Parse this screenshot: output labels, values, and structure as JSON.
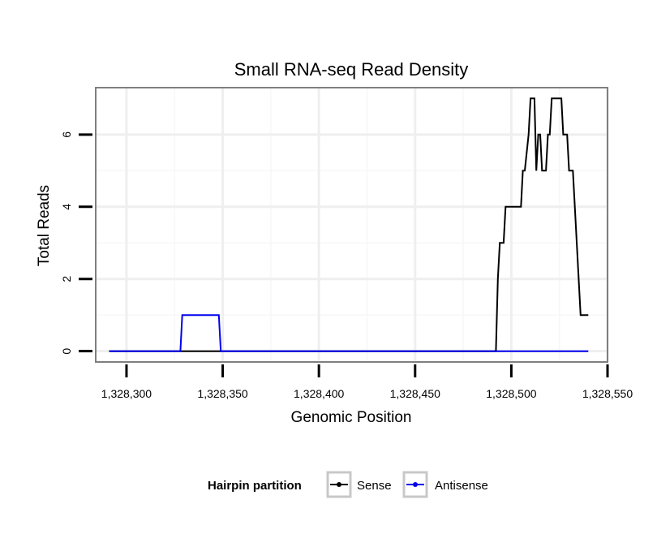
{
  "chart_data": {
    "type": "line",
    "title": "Small RNA-seq Read Density",
    "xlabel": "Genomic Position",
    "ylabel": "Total Reads",
    "xlim": [
      1328284,
      1328550
    ],
    "ylim": [
      -0.3,
      7.3
    ],
    "x_ticks": [
      1328300,
      1328350,
      1328400,
      1328450,
      1328500,
      1328550
    ],
    "x_tick_labels": [
      "1,328,300",
      "1,328,350",
      "1,328,400",
      "1,328,450",
      "1,328,500",
      "1,328,550"
    ],
    "y_ticks": [
      0,
      2,
      4,
      6
    ],
    "y_tick_labels": [
      "0",
      "2",
      "4",
      "6"
    ],
    "grid": true,
    "legend": {
      "title": "Hairpin partition",
      "position": "bottom",
      "entries": [
        "Sense",
        "Antisense"
      ]
    },
    "series": [
      {
        "name": "Sense",
        "color": "#000000",
        "x": [
          1328291,
          1328492,
          1328493,
          1328494,
          1328496,
          1328497,
          1328498,
          1328505,
          1328506,
          1328507,
          1328509,
          1328510,
          1328511,
          1328512,
          1328513,
          1328514,
          1328515,
          1328516,
          1328517,
          1328518,
          1328519,
          1328520,
          1328521,
          1328522,
          1328526,
          1328527,
          1328528,
          1328529,
          1328530,
          1328531,
          1328532,
          1328533,
          1328536,
          1328537,
          1328540
        ],
        "y": [
          0,
          0,
          2,
          3,
          3,
          4,
          4,
          4,
          5,
          5,
          6,
          7,
          7,
          7,
          5,
          6,
          6,
          5,
          5,
          5,
          6,
          6,
          7,
          7,
          7,
          6,
          6,
          6,
          5,
          5,
          5,
          4,
          1,
          1,
          1
        ]
      },
      {
        "name": "Antisense",
        "color": "#0000ee",
        "x": [
          1328291,
          1328328,
          1328329,
          1328348,
          1328349,
          1328540
        ],
        "y": [
          0,
          0,
          1,
          1,
          0,
          0
        ]
      }
    ]
  }
}
